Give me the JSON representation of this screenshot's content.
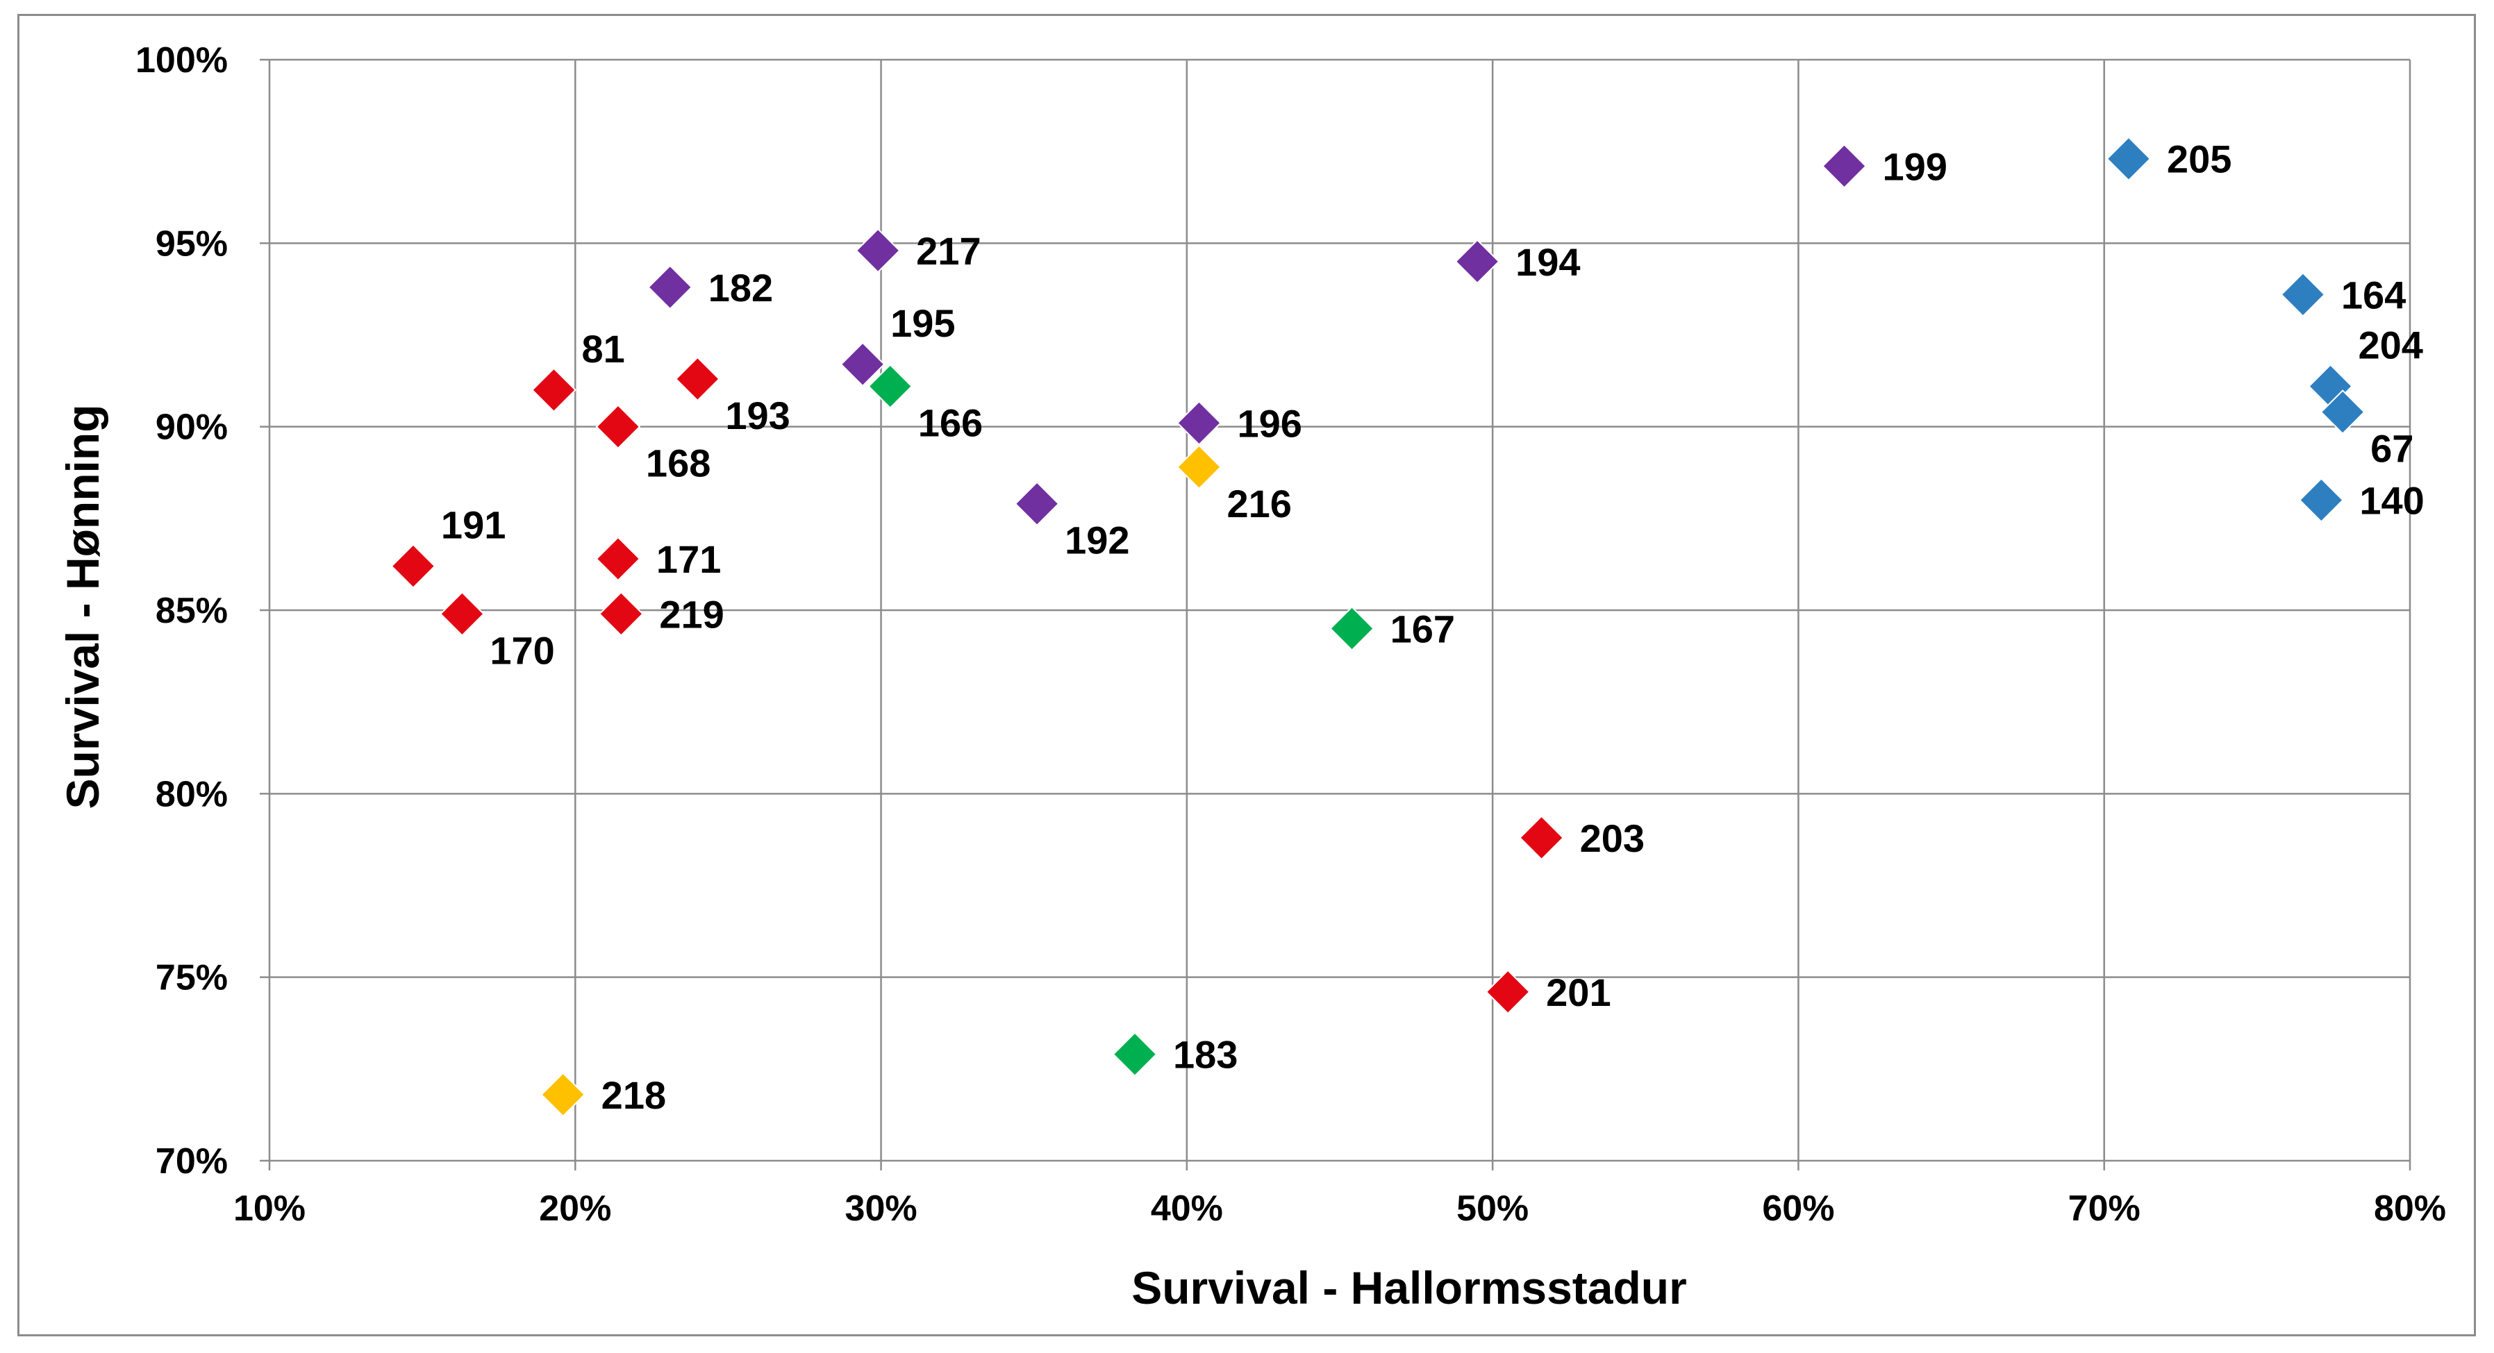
{
  "chart_data": {
    "type": "scatter",
    "title": "",
    "xlabel": "Survival - Hallormsstadur",
    "ylabel": "Survival - Hønning",
    "xlim": [
      0.1,
      0.8
    ],
    "ylim": [
      0.7,
      1.0
    ],
    "x_ticks": [
      0.1,
      0.2,
      0.3,
      0.4,
      0.5,
      0.6,
      0.7,
      0.8
    ],
    "x_tick_labels": [
      "10%",
      "20%",
      "30%",
      "40%",
      "50%",
      "60%",
      "70%",
      "80%"
    ],
    "y_ticks": [
      0.7,
      0.75,
      0.8,
      0.85,
      0.9,
      0.95,
      1.0
    ],
    "y_tick_labels": [
      "70%",
      "75%",
      "80%",
      "85%",
      "90%",
      "95%",
      "100%"
    ],
    "grid": true,
    "marker": "diamond",
    "group_colors": {
      "red": "#e30613",
      "purple": "#7030a0",
      "green": "#00b050",
      "orange": "#ffc000",
      "blue": "#2e7fc0"
    },
    "points": [
      {
        "label": "81",
        "x": 0.193,
        "y": 0.91,
        "group": "red",
        "label_pos": "above-right"
      },
      {
        "label": "168",
        "x": 0.214,
        "y": 0.9,
        "group": "red",
        "label_pos": "below-right"
      },
      {
        "label": "193",
        "x": 0.24,
        "y": 0.913,
        "group": "red",
        "label_pos": "below-right"
      },
      {
        "label": "191",
        "x": 0.147,
        "y": 0.862,
        "group": "red",
        "label_pos": "above-right"
      },
      {
        "label": "170",
        "x": 0.163,
        "y": 0.849,
        "group": "red",
        "label_pos": "below-right"
      },
      {
        "label": "171",
        "x": 0.214,
        "y": 0.864,
        "group": "red",
        "label_pos": "right"
      },
      {
        "label": "219",
        "x": 0.215,
        "y": 0.849,
        "group": "red",
        "label_pos": "right"
      },
      {
        "label": "203",
        "x": 0.516,
        "y": 0.788,
        "group": "red",
        "label_pos": "right"
      },
      {
        "label": "201",
        "x": 0.505,
        "y": 0.746,
        "group": "red",
        "label_pos": "right"
      },
      {
        "label": "182",
        "x": 0.231,
        "y": 0.938,
        "group": "purple",
        "label_pos": "right"
      },
      {
        "label": "217",
        "x": 0.299,
        "y": 0.948,
        "group": "purple",
        "label_pos": "right"
      },
      {
        "label": "195",
        "x": 0.294,
        "y": 0.917,
        "group": "purple",
        "label_pos": "above-right"
      },
      {
        "label": "192",
        "x": 0.351,
        "y": 0.879,
        "group": "purple",
        "label_pos": "below-right"
      },
      {
        "label": "196",
        "x": 0.404,
        "y": 0.901,
        "group": "purple",
        "label_pos": "right"
      },
      {
        "label": "194",
        "x": 0.495,
        "y": 0.945,
        "group": "purple",
        "label_pos": "right"
      },
      {
        "label": "199",
        "x": 0.615,
        "y": 0.971,
        "group": "purple",
        "label_pos": "right"
      },
      {
        "label": "166",
        "x": 0.303,
        "y": 0.911,
        "group": "green",
        "label_pos": "below-right"
      },
      {
        "label": "167",
        "x": 0.454,
        "y": 0.845,
        "group": "green",
        "label_pos": "right"
      },
      {
        "label": "183",
        "x": 0.383,
        "y": 0.729,
        "group": "green",
        "label_pos": "right"
      },
      {
        "label": "216",
        "x": 0.404,
        "y": 0.889,
        "group": "orange",
        "label_pos": "below-right"
      },
      {
        "label": "218",
        "x": 0.196,
        "y": 0.718,
        "group": "orange",
        "label_pos": "right"
      },
      {
        "label": "205",
        "x": 0.708,
        "y": 0.973,
        "group": "blue",
        "label_pos": "right"
      },
      {
        "label": "164",
        "x": 0.765,
        "y": 0.936,
        "group": "blue",
        "label_pos": "right"
      },
      {
        "label": "204",
        "x": 0.774,
        "y": 0.911,
        "group": "blue",
        "label_pos": "above-right"
      },
      {
        "label": "67",
        "x": 0.778,
        "y": 0.904,
        "group": "blue",
        "label_pos": "below-right"
      },
      {
        "label": "140",
        "x": 0.771,
        "y": 0.88,
        "group": "blue",
        "label_pos": "right"
      }
    ]
  }
}
